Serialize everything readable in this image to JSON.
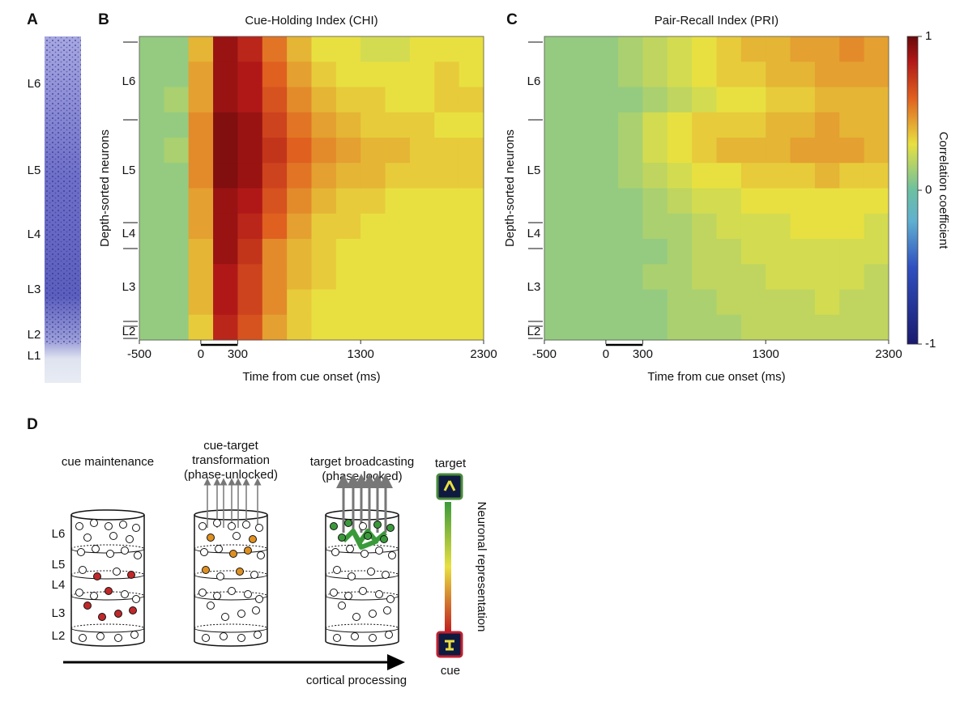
{
  "panel_labels": [
    "A",
    "B",
    "C",
    "D"
  ],
  "panel_a": {
    "layers": [
      "L6",
      "L5",
      "L4",
      "L3",
      "L2",
      "L1"
    ]
  },
  "chart_data": [
    {
      "type": "heatmap",
      "title": "Cue-Holding Index (CHI)",
      "x_label": "Time from cue onset (ms)",
      "y_label": "Depth-sorted neurons",
      "layers": [
        "L6",
        "L5",
        "L4",
        "L3",
        "L2"
      ],
      "xlim": [
        -500,
        2300
      ],
      "xticks": [
        -500,
        0,
        300,
        1300,
        2300
      ],
      "x": [
        -400,
        -200,
        0,
        200,
        400,
        600,
        800,
        1000,
        1200,
        1400,
        1600,
        1800,
        2000,
        2200
      ],
      "values": [
        [
          0.1,
          0.1,
          0.4,
          0.9,
          0.8,
          0.55,
          0.4,
          0.3,
          0.3,
          0.25,
          0.25,
          0.3,
          0.3,
          0.3
        ],
        [
          0.1,
          0.1,
          0.45,
          0.9,
          0.85,
          0.6,
          0.45,
          0.35,
          0.3,
          0.3,
          0.3,
          0.3,
          0.35,
          0.3
        ],
        [
          0.1,
          0.15,
          0.45,
          0.9,
          0.85,
          0.65,
          0.5,
          0.4,
          0.35,
          0.35,
          0.3,
          0.3,
          0.35,
          0.35
        ],
        [
          0.1,
          0.1,
          0.5,
          0.95,
          0.9,
          0.7,
          0.55,
          0.45,
          0.4,
          0.35,
          0.35,
          0.35,
          0.3,
          0.3
        ],
        [
          0.1,
          0.15,
          0.5,
          0.95,
          0.9,
          0.75,
          0.6,
          0.5,
          0.45,
          0.4,
          0.4,
          0.35,
          0.35,
          0.35
        ],
        [
          0.1,
          0.1,
          0.5,
          0.95,
          0.9,
          0.7,
          0.55,
          0.45,
          0.4,
          0.4,
          0.35,
          0.35,
          0.35,
          0.35
        ],
        [
          0.1,
          0.1,
          0.45,
          0.9,
          0.85,
          0.65,
          0.5,
          0.4,
          0.35,
          0.35,
          0.3,
          0.3,
          0.3,
          0.3
        ],
        [
          0.1,
          0.1,
          0.45,
          0.9,
          0.8,
          0.6,
          0.45,
          0.35,
          0.35,
          0.3,
          0.3,
          0.3,
          0.3,
          0.3
        ],
        [
          0.1,
          0.1,
          0.4,
          0.9,
          0.75,
          0.5,
          0.4,
          0.35,
          0.3,
          0.3,
          0.3,
          0.3,
          0.3,
          0.3
        ],
        [
          0.1,
          0.1,
          0.4,
          0.85,
          0.7,
          0.5,
          0.4,
          0.35,
          0.3,
          0.3,
          0.3,
          0.3,
          0.3,
          0.3
        ],
        [
          0.1,
          0.1,
          0.4,
          0.85,
          0.7,
          0.5,
          0.35,
          0.3,
          0.3,
          0.3,
          0.3,
          0.3,
          0.3,
          0.3
        ],
        [
          0.1,
          0.1,
          0.35,
          0.8,
          0.65,
          0.45,
          0.35,
          0.3,
          0.3,
          0.3,
          0.3,
          0.3,
          0.3,
          0.3
        ]
      ]
    },
    {
      "type": "heatmap",
      "title": "Pair-Recall Index (PRI)",
      "x_label": "Time from cue onset (ms)",
      "y_label": "Depth-sorted neurons",
      "layers": [
        "L6",
        "L5",
        "L4",
        "L3",
        "L2"
      ],
      "xlim": [
        -500,
        2300
      ],
      "xticks": [
        -500,
        0,
        300,
        1300,
        2300
      ],
      "x": [
        -400,
        -200,
        0,
        200,
        400,
        600,
        800,
        1000,
        1200,
        1400,
        1600,
        1800,
        2000,
        2200
      ],
      "values": [
        [
          0.1,
          0.1,
          0.1,
          0.15,
          0.2,
          0.25,
          0.3,
          0.35,
          0.4,
          0.4,
          0.45,
          0.45,
          0.5,
          0.45
        ],
        [
          0.1,
          0.1,
          0.1,
          0.15,
          0.2,
          0.25,
          0.3,
          0.35,
          0.35,
          0.4,
          0.4,
          0.45,
          0.45,
          0.45
        ],
        [
          0.1,
          0.1,
          0.1,
          0.1,
          0.15,
          0.2,
          0.25,
          0.3,
          0.3,
          0.35,
          0.35,
          0.4,
          0.4,
          0.4
        ],
        [
          0.1,
          0.1,
          0.1,
          0.15,
          0.25,
          0.3,
          0.35,
          0.35,
          0.35,
          0.4,
          0.4,
          0.45,
          0.4,
          0.4
        ],
        [
          0.1,
          0.1,
          0.1,
          0.15,
          0.25,
          0.3,
          0.35,
          0.4,
          0.4,
          0.4,
          0.45,
          0.45,
          0.45,
          0.4
        ],
        [
          0.1,
          0.1,
          0.1,
          0.15,
          0.2,
          0.25,
          0.3,
          0.3,
          0.35,
          0.35,
          0.35,
          0.4,
          0.35,
          0.35
        ],
        [
          0.1,
          0.1,
          0.1,
          0.1,
          0.15,
          0.2,
          0.25,
          0.25,
          0.3,
          0.3,
          0.3,
          0.3,
          0.3,
          0.3
        ],
        [
          0.1,
          0.1,
          0.1,
          0.1,
          0.15,
          0.15,
          0.2,
          0.25,
          0.25,
          0.25,
          0.3,
          0.3,
          0.3,
          0.25
        ],
        [
          0.1,
          0.1,
          0.1,
          0.1,
          0.1,
          0.15,
          0.2,
          0.2,
          0.25,
          0.25,
          0.25,
          0.25,
          0.25,
          0.25
        ],
        [
          0.1,
          0.1,
          0.1,
          0.1,
          0.15,
          0.15,
          0.2,
          0.2,
          0.2,
          0.25,
          0.25,
          0.25,
          0.25,
          0.2
        ],
        [
          0.1,
          0.1,
          0.1,
          0.1,
          0.1,
          0.15,
          0.15,
          0.2,
          0.2,
          0.2,
          0.2,
          0.25,
          0.2,
          0.2
        ],
        [
          0.1,
          0.1,
          0.1,
          0.1,
          0.1,
          0.15,
          0.15,
          0.15,
          0.2,
          0.2,
          0.2,
          0.2,
          0.2,
          0.2
        ]
      ]
    }
  ],
  "colorbar": {
    "label": "Correlation coefficient",
    "zlim": [
      -1,
      1
    ],
    "ticks": [
      1,
      0,
      -1
    ]
  },
  "diagram": {
    "stages": [
      "cue maintenance",
      "cue-target\ntransformation\n(phase-unlocked)",
      "target broadcasting\n(phase-locked)"
    ],
    "layers": [
      "L6",
      "L5",
      "L4",
      "L3",
      "L2"
    ],
    "axis_label": "cortical processing",
    "scale_top": "target",
    "scale_bottom": "cue",
    "scale_label": "Neuronal representation"
  }
}
